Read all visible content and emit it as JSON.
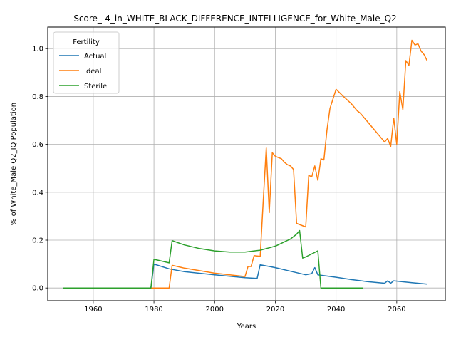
{
  "chart_data": {
    "type": "line",
    "title": "Score_-4_in_WHITE_BLACK_DIFFERENCE_INTELLIGENCE_for_White_Male_Q2",
    "xlabel": "Years",
    "ylabel": "% of White_Male Q2_IQ Population",
    "xlim": [
      1945,
      2076
    ],
    "ylim": [
      -0.053,
      1.09
    ],
    "xticks": [
      1960,
      1980,
      2000,
      2020,
      2040,
      2060
    ],
    "yticks": [
      0.0,
      0.2,
      0.4,
      0.6,
      0.8,
      1.0
    ],
    "ytick_labels": [
      "0.0",
      "0.2",
      "0.4",
      "0.6",
      "0.8",
      "1.0"
    ],
    "grid": true,
    "legend": {
      "title": "Fertility",
      "position": "upper left"
    },
    "series": [
      {
        "name": "Actual",
        "color": "#1f77b4",
        "x": [
          1950,
          1979,
          1980,
          1985,
          1990,
          2000,
          2010,
          2014,
          2015,
          2020,
          2025,
          2030,
          2032,
          2033,
          2034,
          2040,
          2045,
          2050,
          2055,
          2056,
          2057,
          2058,
          2059,
          2065,
          2070
        ],
        "y": [
          0.0,
          0.0,
          0.1,
          0.08,
          0.068,
          0.055,
          0.043,
          0.04,
          0.097,
          0.085,
          0.07,
          0.055,
          0.06,
          0.085,
          0.055,
          0.045,
          0.035,
          0.027,
          0.021,
          0.02,
          0.03,
          0.02,
          0.03,
          0.022,
          0.016
        ]
      },
      {
        "name": "Ideal",
        "color": "#ff7f0e",
        "x": [
          1950,
          1985,
          1986,
          1990,
          2000,
          2010,
          2011,
          2012,
          2013,
          2015,
          2016,
          2017,
          2018,
          2019,
          2020,
          2022,
          2023,
          2024,
          2025,
          2026,
          2027,
          2030,
          2031,
          2032,
          2033,
          2034,
          2035,
          2036,
          2037,
          2038,
          2040,
          2042,
          2045,
          2047,
          2048,
          2050,
          2052,
          2054,
          2056,
          2057,
          2058,
          2059,
          2060,
          2061,
          2062,
          2063,
          2064,
          2065,
          2066,
          2067,
          2068,
          2069,
          2070
        ],
        "y": [
          0.0,
          0.0,
          0.095,
          0.083,
          0.062,
          0.048,
          0.09,
          0.09,
          0.135,
          0.132,
          0.36,
          0.585,
          0.315,
          0.565,
          0.55,
          0.54,
          0.525,
          0.515,
          0.51,
          0.495,
          0.27,
          0.255,
          0.47,
          0.465,
          0.51,
          0.45,
          0.54,
          0.535,
          0.66,
          0.75,
          0.83,
          0.805,
          0.77,
          0.74,
          0.73,
          0.7,
          0.67,
          0.64,
          0.61,
          0.625,
          0.59,
          0.71,
          0.6,
          0.82,
          0.745,
          0.95,
          0.93,
          1.035,
          1.015,
          1.02,
          0.99,
          0.975,
          0.95
        ]
      },
      {
        "name": "Sterile",
        "color": "#2ca02c",
        "x": [
          1950,
          1979,
          1980,
          1985,
          1986,
          1990,
          1995,
          2000,
          2005,
          2010,
          2015,
          2020,
          2025,
          2027,
          2028,
          2029,
          2030,
          2034,
          2035,
          2040,
          2045,
          2049
        ],
        "y": [
          0.0,
          0.0,
          0.12,
          0.105,
          0.198,
          0.18,
          0.165,
          0.155,
          0.15,
          0.15,
          0.158,
          0.175,
          0.205,
          0.225,
          0.24,
          0.125,
          0.13,
          0.155,
          0.0,
          0.0,
          0.0,
          0.0
        ]
      }
    ]
  }
}
